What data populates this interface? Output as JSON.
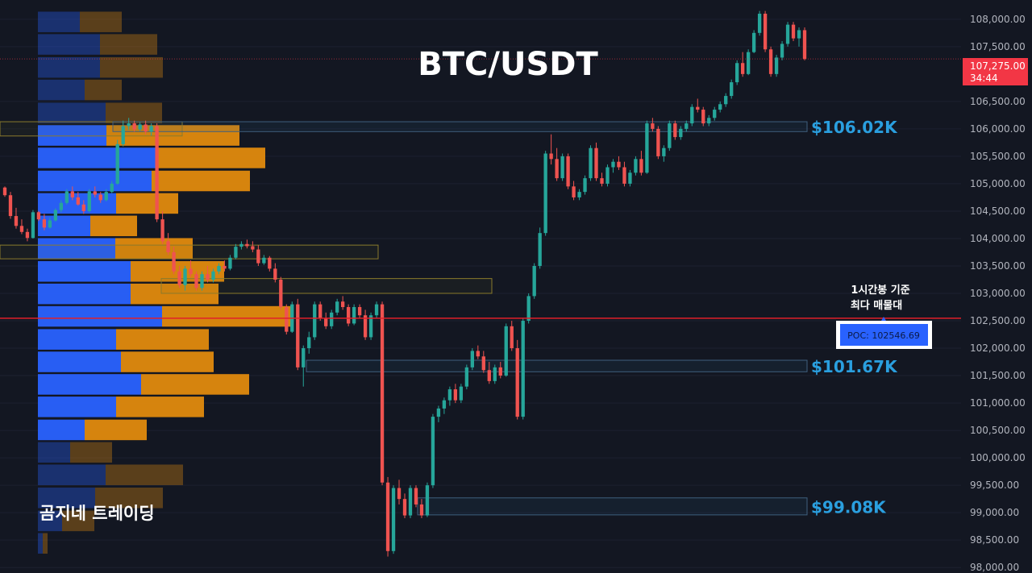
{
  "chart_data": {
    "type": "candlestick",
    "title": "BTC/USDT",
    "watermark": "곰지네 트레이딩",
    "y_axis": {
      "range": [
        97900,
        108350
      ],
      "ticks": [
        "108,000.00",
        "107,500.00",
        "106,500.00",
        "106,000.00",
        "105,500.00",
        "105,000.00",
        "104,500.00",
        "104,000.00",
        "103,500.00",
        "103,000.00",
        "102,500.00",
        "102,000.00",
        "101,500.00",
        "101,000.00",
        "100,500.00",
        "100,000.00",
        "99,500.00",
        "99,000.00",
        "98,500.00",
        "98,000.00"
      ]
    },
    "current_price": {
      "value": 107275,
      "label": "107,275.00",
      "countdown": "34:44",
      "color": "#f23645"
    },
    "poc": {
      "value": 102546.69,
      "label": "POC: 102546.69",
      "note_line1": "1시간봉 기준",
      "note_line2": "최다 매물대",
      "line_color": "#e0202a"
    },
    "levels": [
      {
        "label": "$106.02K",
        "low": 105950,
        "high": 106130,
        "color": "#2a9fdf"
      },
      {
        "label": "$101.67K",
        "low": 101570,
        "high": 101780,
        "color": "#2a9fdf"
      },
      {
        "label": "$99.08K",
        "low": 98960,
        "high": 99270,
        "color": "#2a9fdf"
      }
    ],
    "volume_profile": {
      "bull_color": "#2962ff",
      "bear_color": "#e08a0e",
      "rows": [
        {
          "price": 107950,
          "buy": 52,
          "sell": 52,
          "faded": true
        },
        {
          "price": 107540,
          "buy": 77,
          "sell": 71,
          "faded": true
        },
        {
          "price": 107120,
          "buy": 77,
          "sell": 78,
          "faded": true
        },
        {
          "price": 106710,
          "buy": 58,
          "sell": 46,
          "faded": true
        },
        {
          "price": 106290,
          "buy": 84,
          "sell": 70,
          "faded": true
        },
        {
          "price": 105880,
          "buy": 85,
          "sell": 165,
          "faded": false
        },
        {
          "price": 105470,
          "buy": 147,
          "sell": 135,
          "faded": false
        },
        {
          "price": 105050,
          "buy": 141,
          "sell": 122,
          "faded": false
        },
        {
          "price": 104640,
          "buy": 97,
          "sell": 77,
          "faded": false
        },
        {
          "price": 104230,
          "buy": 65,
          "sell": 58,
          "faded": false
        },
        {
          "price": 103820,
          "buy": 96,
          "sell": 96,
          "faded": false
        },
        {
          "price": 103400,
          "buy": 115,
          "sell": 116,
          "faded": false
        },
        {
          "price": 102990,
          "buy": 115,
          "sell": 109,
          "faded": false
        },
        {
          "price": 102580,
          "buy": 154,
          "sell": 160,
          "faded": false
        },
        {
          "price": 102160,
          "buy": 97,
          "sell": 115,
          "faded": false
        },
        {
          "price": 101750,
          "buy": 103,
          "sell": 115,
          "faded": false
        },
        {
          "price": 101340,
          "buy": 128,
          "sell": 134,
          "faded": false
        },
        {
          "price": 100930,
          "buy": 97,
          "sell": 109,
          "faded": false
        },
        {
          "price": 100510,
          "buy": 58,
          "sell": 77,
          "faded": false
        },
        {
          "price": 100100,
          "buy": 40,
          "sell": 52,
          "faded": true
        },
        {
          "price": 99690,
          "buy": 84,
          "sell": 96,
          "faded": true
        },
        {
          "price": 99270,
          "buy": 71,
          "sell": 84,
          "faded": true
        },
        {
          "price": 98850,
          "buy": 30,
          "sell": 40,
          "faded": true
        },
        {
          "price": 98440,
          "buy": 6,
          "sell": 6,
          "faded": true
        }
      ]
    },
    "value_areas": [
      {
        "low": 105870,
        "high": 106130,
        "from": 0,
        "to": 226
      },
      {
        "low": 103630,
        "high": 103880,
        "from": 0,
        "to": 469
      },
      {
        "low": 103000,
        "high": 103270,
        "from": 200,
        "to": 610
      }
    ],
    "candles": [
      [
        104930,
        104950,
        104760,
        104790
      ],
      [
        104790,
        104850,
        104360,
        104410
      ],
      [
        104410,
        104560,
        104180,
        104230
      ],
      [
        104230,
        104350,
        104080,
        104120
      ],
      [
        104120,
        104180,
        103950,
        104010
      ],
      [
        104010,
        104520,
        104000,
        104480
      ],
      [
        104480,
        104500,
        104320,
        104350
      ],
      [
        104350,
        104450,
        104150,
        104200
      ],
      [
        104200,
        104380,
        104180,
        104330
      ],
      [
        104330,
        104550,
        104310,
        104520
      ],
      [
        104520,
        104700,
        104480,
        104650
      ],
      [
        104650,
        104900,
        104620,
        104860
      ],
      [
        104860,
        104950,
        104700,
        104750
      ],
      [
        104750,
        104850,
        104600,
        104620
      ],
      [
        104620,
        104700,
        104450,
        104500
      ],
      [
        104500,
        104900,
        104480,
        104860
      ],
      [
        104860,
        104950,
        104750,
        104800
      ],
      [
        104800,
        104850,
        104650,
        104700
      ],
      [
        104700,
        104900,
        104680,
        104850
      ],
      [
        104850,
        105050,
        104830,
        105000
      ],
      [
        105000,
        105800,
        104980,
        105720
      ],
      [
        105720,
        106150,
        105680,
        106050
      ],
      [
        106050,
        106200,
        105980,
        106100
      ],
      [
        106100,
        106150,
        105950,
        105990
      ],
      [
        105990,
        106120,
        105960,
        106080
      ],
      [
        106080,
        106150,
        105900,
        105950
      ],
      [
        105950,
        106100,
        105880,
        106050
      ],
      [
        106050,
        106100,
        104300,
        104350
      ],
      [
        104350,
        104500,
        103900,
        103950
      ],
      [
        103950,
        104100,
        103700,
        103750
      ],
      [
        103750,
        103850,
        103350,
        103400
      ],
      [
        103400,
        103500,
        103100,
        103150
      ],
      [
        103150,
        103500,
        103050,
        103450
      ],
      [
        103450,
        103600,
        103300,
        103350
      ],
      [
        103350,
        103400,
        103050,
        103100
      ],
      [
        103100,
        103400,
        103050,
        103350
      ],
      [
        103350,
        103500,
        103200,
        103250
      ],
      [
        103250,
        103450,
        103200,
        103400
      ],
      [
        103400,
        103550,
        103350,
        103500
      ],
      [
        103500,
        103600,
        103400,
        103450
      ],
      [
        103450,
        103700,
        103420,
        103650
      ],
      [
        103650,
        103900,
        103620,
        103850
      ],
      [
        103850,
        103950,
        103800,
        103900
      ],
      [
        103900,
        103980,
        103820,
        103860
      ],
      [
        103860,
        103950,
        103750,
        103800
      ],
      [
        103800,
        103880,
        103500,
        103550
      ],
      [
        103550,
        103700,
        103520,
        103650
      ],
      [
        103650,
        103680,
        103400,
        103450
      ],
      [
        103450,
        103550,
        103200,
        103250
      ],
      [
        103250,
        103300,
        102700,
        102750
      ],
      [
        102750,
        102800,
        102250,
        102300
      ],
      [
        102300,
        102850,
        102280,
        102800
      ],
      [
        102800,
        102900,
        101600,
        101650
      ],
      [
        101650,
        102050,
        101300,
        102000
      ],
      [
        102000,
        102300,
        101900,
        102200
      ],
      [
        102200,
        102850,
        102150,
        102800
      ],
      [
        102800,
        102850,
        102500,
        102550
      ],
      [
        102550,
        102650,
        102350,
        102400
      ],
      [
        102400,
        102700,
        102350,
        102650
      ],
      [
        102650,
        102900,
        102600,
        102850
      ],
      [
        102850,
        102950,
        102700,
        102750
      ],
      [
        102750,
        102800,
        102400,
        102450
      ],
      [
        102450,
        102800,
        102420,
        102750
      ],
      [
        102750,
        102800,
        102550,
        102600
      ],
      [
        102600,
        102700,
        102150,
        102200
      ],
      [
        102200,
        102650,
        102150,
        102600
      ],
      [
        102600,
        102850,
        102550,
        102800
      ],
      [
        102800,
        102850,
        99500,
        99550
      ],
      [
        99550,
        99650,
        98200,
        98300
      ],
      [
        98300,
        99500,
        98250,
        99450
      ],
      [
        99450,
        99600,
        99150,
        99250
      ],
      [
        99250,
        99350,
        98900,
        98950
      ],
      [
        98950,
        99500,
        98900,
        99450
      ],
      [
        99450,
        99500,
        99100,
        99150
      ],
      [
        99150,
        99250,
        98900,
        98950
      ],
      [
        98950,
        99550,
        98920,
        99500
      ],
      [
        99500,
        100800,
        99450,
        100750
      ],
      [
        100750,
        100950,
        100650,
        100900
      ],
      [
        100900,
        101100,
        100800,
        101050
      ],
      [
        101050,
        101300,
        100950,
        101250
      ],
      [
        101250,
        101350,
        101000,
        101050
      ],
      [
        101050,
        101350,
        101000,
        101300
      ],
      [
        101300,
        101700,
        101250,
        101650
      ],
      [
        101650,
        102000,
        101600,
        101950
      ],
      [
        101950,
        102050,
        101800,
        101850
      ],
      [
        101850,
        101950,
        101550,
        101600
      ],
      [
        101600,
        101750,
        101350,
        101400
      ],
      [
        101400,
        101700,
        101350,
        101650
      ],
      [
        101650,
        101750,
        101450,
        101500
      ],
      [
        101500,
        102450,
        101480,
        102400
      ],
      [
        102400,
        102500,
        101950,
        102000
      ],
      [
        102000,
        102150,
        100700,
        100750
      ],
      [
        100750,
        102550,
        100700,
        102500
      ],
      [
        102500,
        103000,
        102450,
        102950
      ],
      [
        102950,
        103550,
        102900,
        103500
      ],
      [
        103500,
        104200,
        103450,
        104100
      ],
      [
        104100,
        105600,
        104050,
        105550
      ],
      [
        105550,
        105900,
        105350,
        105450
      ],
      [
        105450,
        105650,
        105050,
        105100
      ],
      [
        105100,
        105550,
        105050,
        105500
      ],
      [
        105500,
        105550,
        104900,
        104950
      ],
      [
        104950,
        105050,
        104700,
        104750
      ],
      [
        104750,
        104900,
        104700,
        104850
      ],
      [
        104850,
        105150,
        104800,
        105100
      ],
      [
        105100,
        105700,
        105050,
        105650
      ],
      [
        105650,
        105750,
        105050,
        105100
      ],
      [
        105100,
        105200,
        104950,
        105000
      ],
      [
        105000,
        105350,
        104950,
        105300
      ],
      [
        105300,
        105450,
        105200,
        105400
      ],
      [
        105400,
        105500,
        105250,
        105300
      ],
      [
        105300,
        105400,
        104950,
        105000
      ],
      [
        105000,
        105250,
        104950,
        105200
      ],
      [
        105200,
        105500,
        105150,
        105450
      ],
      [
        105450,
        105600,
        105150,
        105200
      ],
      [
        105200,
        106150,
        105180,
        106100
      ],
      [
        106100,
        106200,
        105950,
        106000
      ],
      [
        106000,
        106050,
        105450,
        105500
      ],
      [
        105500,
        105700,
        105400,
        105650
      ],
      [
        105650,
        106150,
        105600,
        106100
      ],
      [
        106100,
        106150,
        105800,
        105850
      ],
      [
        105850,
        106050,
        105800,
        106000
      ],
      [
        106000,
        106150,
        105950,
        106100
      ],
      [
        106100,
        106450,
        106050,
        106400
      ],
      [
        106400,
        106550,
        106300,
        106350
      ],
      [
        106350,
        106400,
        106050,
        106100
      ],
      [
        106100,
        106250,
        106050,
        106200
      ],
      [
        106200,
        106400,
        106150,
        106350
      ],
      [
        106350,
        106500,
        106300,
        106450
      ],
      [
        106450,
        106650,
        106400,
        106600
      ],
      [
        106600,
        106900,
        106550,
        106850
      ],
      [
        106850,
        107250,
        106800,
        107200
      ],
      [
        107200,
        107400,
        106950,
        107000
      ],
      [
        107000,
        107450,
        106980,
        107400
      ],
      [
        107400,
        107800,
        107380,
        107750
      ],
      [
        107750,
        108150,
        107700,
        108100
      ],
      [
        108100,
        108150,
        107400,
        107450
      ],
      [
        107450,
        107500,
        106950,
        107000
      ],
      [
        107000,
        107350,
        106950,
        107300
      ],
      [
        107300,
        107600,
        107250,
        107550
      ],
      [
        107550,
        107950,
        107500,
        107900
      ],
      [
        107900,
        107950,
        107600,
        107650
      ],
      [
        107650,
        107850,
        107500,
        107800
      ],
      [
        107800,
        107850,
        107250,
        107275
      ]
    ]
  }
}
